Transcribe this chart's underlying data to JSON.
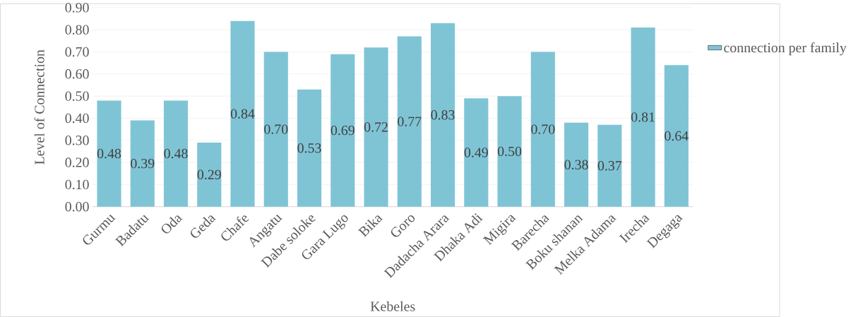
{
  "chart_data": {
    "type": "bar",
    "xlabel": "Kebeles",
    "ylabel": "Level of Connection",
    "categories": [
      "Gurmu",
      "Badatu",
      "Oda",
      "Geda",
      "Chafe",
      "Angatu",
      "Dabe soloke",
      "Gara Lugo",
      "Bika",
      "Goro",
      "Dadacha Arara",
      "Dhaka Adi",
      "Migira",
      "Barecha",
      "Boku shanan",
      "Melka Adama",
      "Irecha",
      "Degaga"
    ],
    "series": [
      {
        "name": "connection per family",
        "color": "#7fc4d5",
        "values": [
          0.48,
          0.39,
          0.48,
          0.29,
          0.84,
          0.7,
          0.53,
          0.69,
          0.72,
          0.77,
          0.83,
          0.49,
          0.5,
          0.7,
          0.38,
          0.37,
          0.81,
          0.64
        ],
        "value_labels": [
          "0.48",
          "0.39",
          "0.48",
          "0.29",
          "0.84",
          "0.70",
          "0.53",
          "0.69",
          "0.72",
          "0.77",
          "0.83",
          "0.49",
          "0.50",
          "0.70",
          "0.38",
          "0.37",
          "0.81",
          "0.64"
        ]
      }
    ],
    "ylim": [
      0,
      0.9
    ],
    "yticks": [
      {
        "value": 0,
        "label": "0.00"
      },
      {
        "value": 0.1,
        "label": "0.10"
      },
      {
        "value": 0.2,
        "label": "0.20"
      },
      {
        "value": 0.3,
        "label": "0.30"
      },
      {
        "value": 0.4,
        "label": "0.40"
      },
      {
        "value": 0.5,
        "label": "0.50"
      },
      {
        "value": 0.6,
        "label": "0.60"
      },
      {
        "value": 0.7,
        "label": "0.70"
      },
      {
        "value": 0.8,
        "label": "0.80"
      },
      {
        "value": 0.9,
        "label": "0.90"
      }
    ],
    "grid": "y",
    "legend": "right"
  }
}
